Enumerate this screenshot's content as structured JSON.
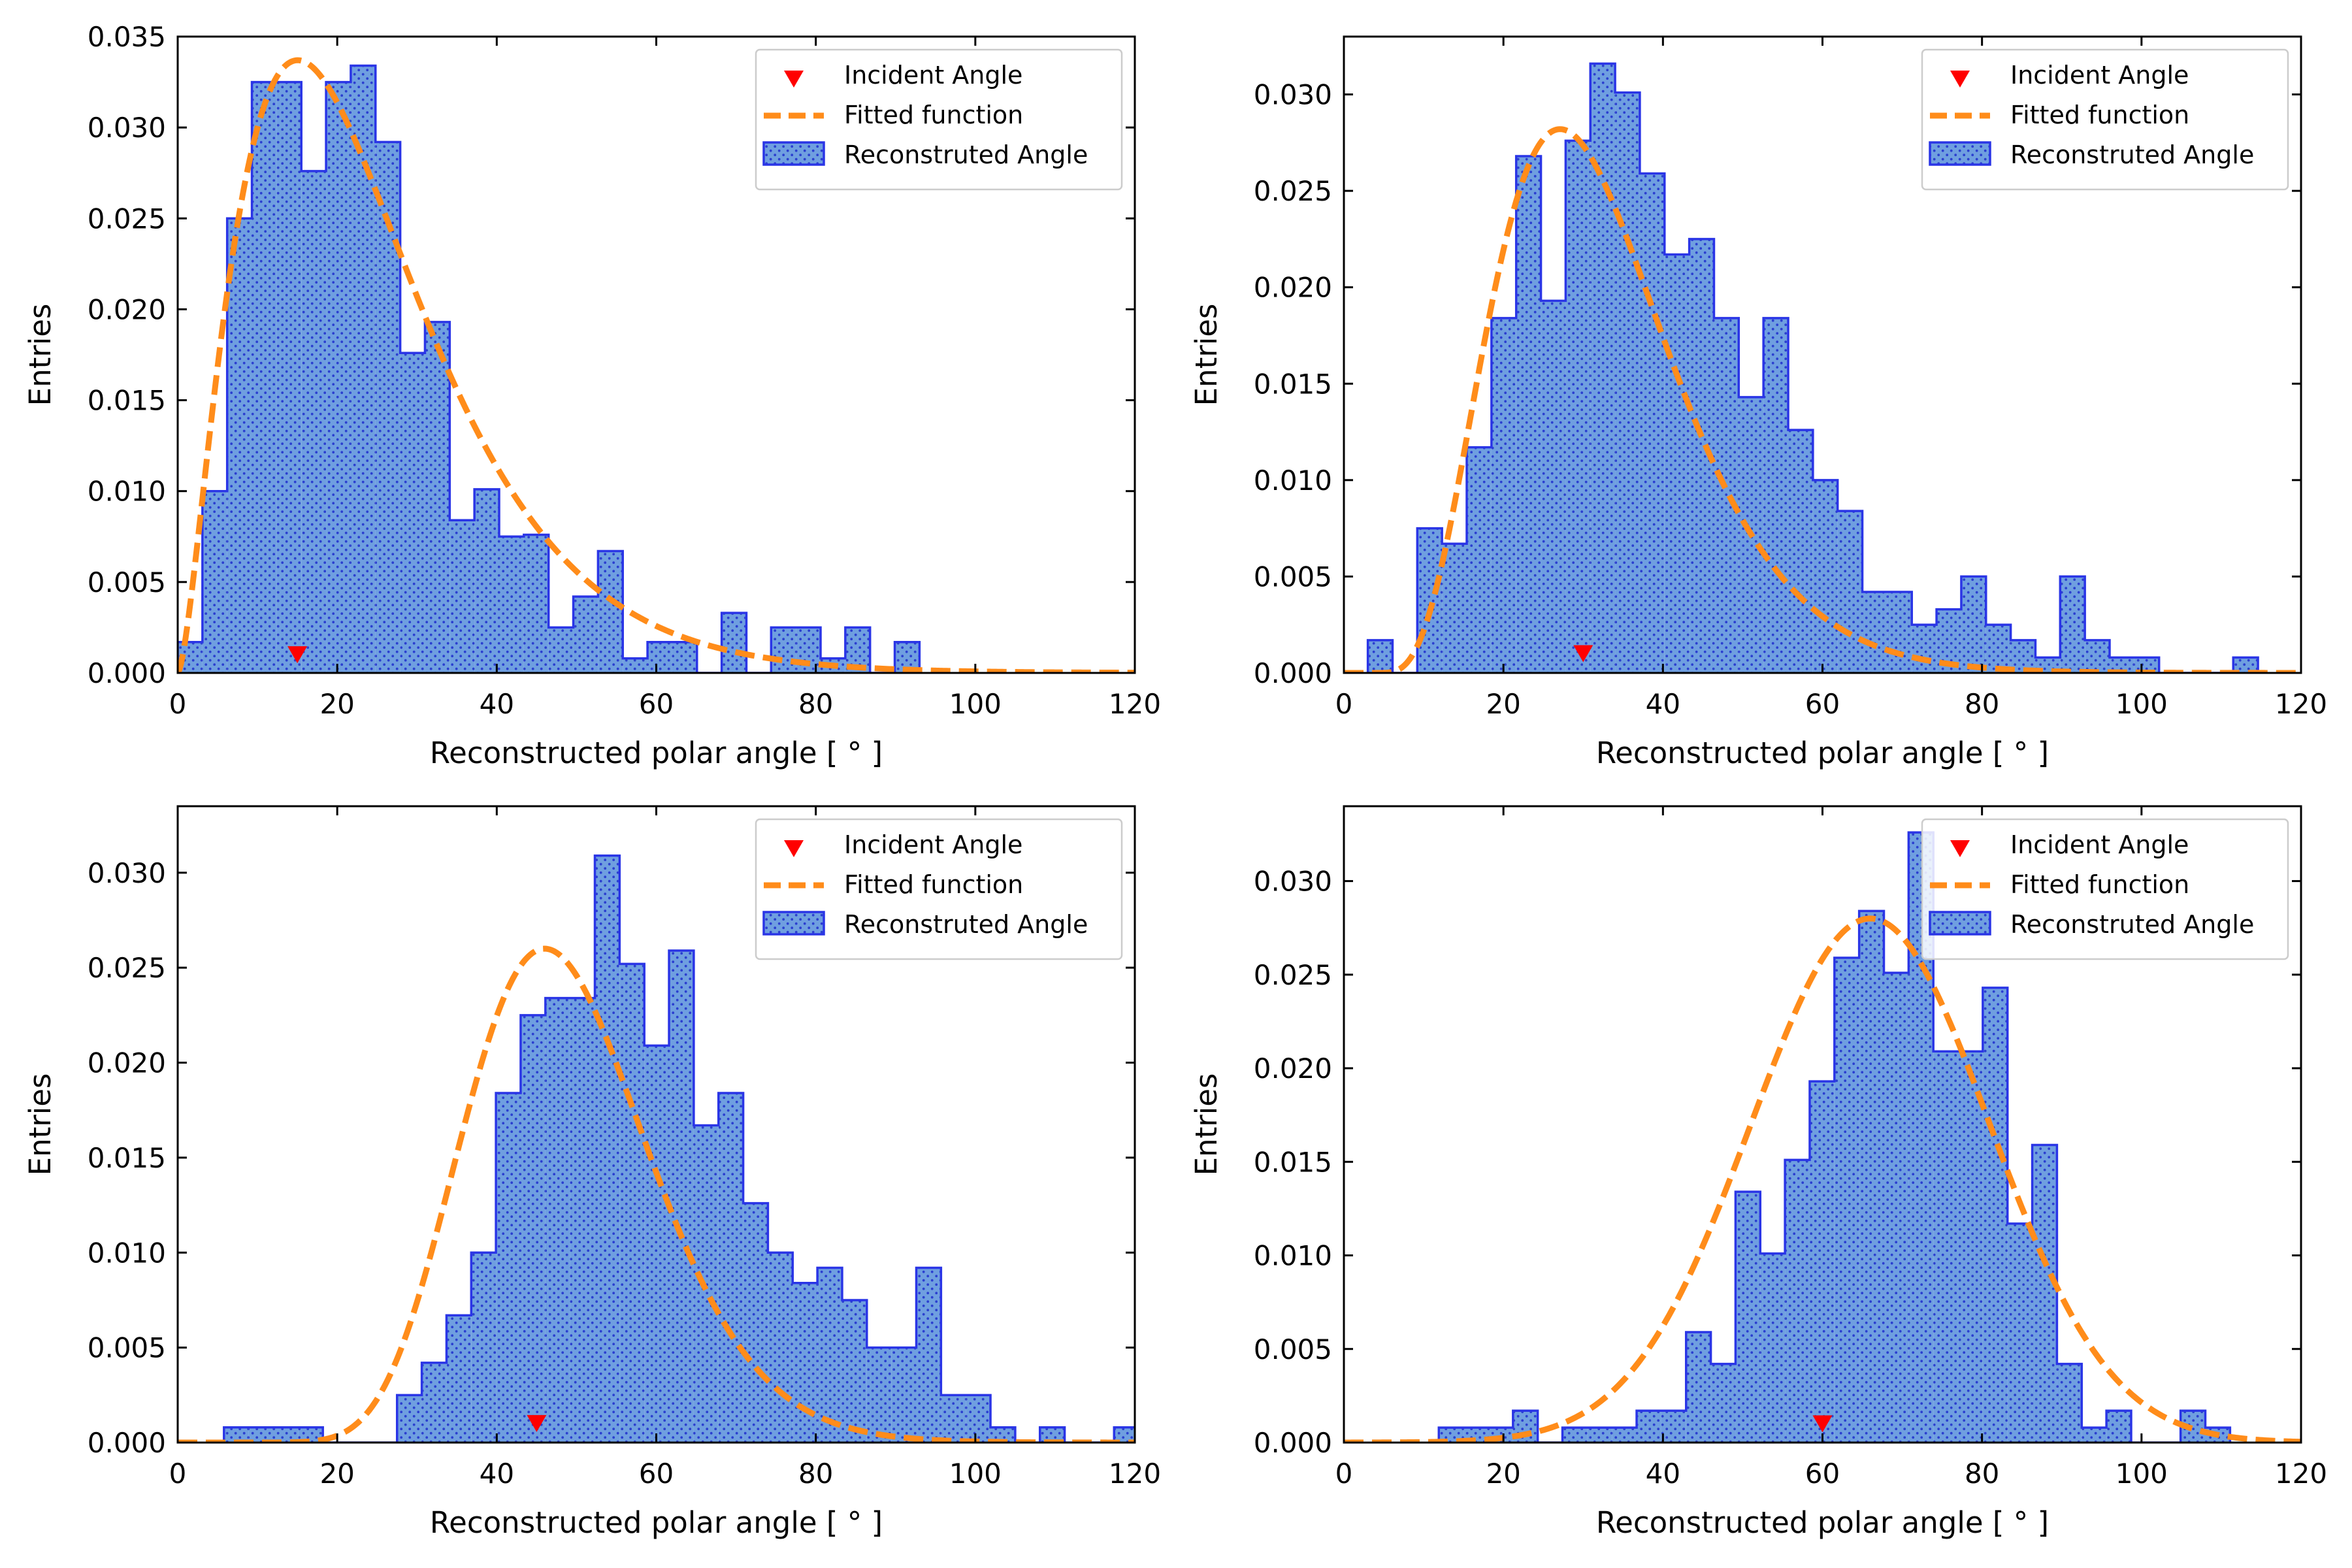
{
  "colors": {
    "fill": "#6f9fe0",
    "edge": "#2a35e6",
    "dots": "#2b3fd0",
    "fit": "#ff8c1a",
    "marker": "#ff0000",
    "axis": "#000000"
  },
  "legend": {
    "incident": "Incident Angle",
    "fitted": "Fitted function",
    "reco": "Reconstruted Angle"
  },
  "chart_data": [
    {
      "type": "histogram",
      "position": "top-left",
      "xlabel": "Reconstructed polar angle [$^\\circ$]",
      "xlabel_display": "Reconstructed polar angle [ ° ]",
      "ylabel": "Entries",
      "xlim": [
        0,
        120
      ],
      "ylim": [
        0,
        0.035
      ],
      "xticks": [
        0,
        20,
        40,
        60,
        80,
        100,
        120
      ],
      "yticks": [
        0.0,
        0.005,
        0.01,
        0.015,
        0.02,
        0.025,
        0.03,
        0.035
      ],
      "ytick_labels": [
        "0.000",
        "0.005",
        "0.010",
        "0.015",
        "0.020",
        "0.025",
        "0.030",
        "0.035"
      ],
      "legend_loc": "upper right",
      "bin_edges_start": 0,
      "bin_width": 3.1,
      "bin_values": [
        0.0017,
        0.01,
        0.025,
        0.0325,
        0.0325,
        0.0276,
        0.0325,
        0.0334,
        0.0292,
        0.0176,
        0.0193,
        0.0084,
        0.0101,
        0.0075,
        0.0076,
        0.0025,
        0.0042,
        0.0067,
        0.0008,
        0.0017,
        0.0017,
        0.0,
        0.0033,
        0.0,
        0.0025,
        0.0025,
        0.0008,
        0.0025,
        0.0,
        0.0017
      ],
      "fit": {
        "shape": "gamma",
        "k": 2.6,
        "theta": 9.4,
        "shift": 0.0,
        "peak": 0.0337
      },
      "incident_angle": 15,
      "incident_y": 0.001
    },
    {
      "type": "histogram",
      "position": "top-right",
      "xlabel": "Reconstructed polar angle [$^\\circ$]",
      "xlabel_display": "Reconstructed polar angle [ ° ]",
      "ylabel": "Entries",
      "xlim": [
        0,
        120
      ],
      "ylim": [
        0,
        0.033
      ],
      "xticks": [
        0,
        20,
        40,
        60,
        80,
        100,
        120
      ],
      "yticks": [
        0.0,
        0.005,
        0.01,
        0.015,
        0.02,
        0.025,
        0.03
      ],
      "ytick_labels": [
        "0.000",
        "0.005",
        "0.010",
        "0.015",
        "0.020",
        "0.025",
        "0.030"
      ],
      "legend_loc": "upper right",
      "bin_edges_start": 3.0,
      "bin_width": 3.1,
      "bin_values": [
        0.0017,
        0.0,
        0.0075,
        0.0067,
        0.0117,
        0.0184,
        0.0268,
        0.0193,
        0.0276,
        0.0316,
        0.0301,
        0.0259,
        0.0217,
        0.0225,
        0.0184,
        0.0143,
        0.0184,
        0.0126,
        0.01,
        0.0084,
        0.0042,
        0.0042,
        0.0025,
        0.0033,
        0.005,
        0.0025,
        0.0017,
        0.0008,
        0.005,
        0.0017,
        0.0008,
        0.0008,
        0.0,
        0.0,
        0.0,
        0.0008
      ],
      "fit": {
        "shape": "gamma",
        "k": 5.2,
        "theta": 5.5,
        "shift": 4.0,
        "peak": 0.0282
      },
      "incident_angle": 30,
      "incident_y": 0.001
    },
    {
      "type": "histogram",
      "position": "bottom-left",
      "xlabel": "Reconstructed polar angle [$^\\circ$]",
      "xlabel_display": "Reconstructed polar angle [ ° ]",
      "ylabel": "Entries",
      "xlim": [
        0,
        120
      ],
      "ylim": [
        0,
        0.0335
      ],
      "xticks": [
        0,
        20,
        40,
        60,
        80,
        100,
        120
      ],
      "yticks": [
        0.0,
        0.005,
        0.01,
        0.015,
        0.02,
        0.025,
        0.03
      ],
      "ytick_labels": [
        "0.000",
        "0.005",
        "0.010",
        "0.015",
        "0.020",
        "0.025",
        "0.030"
      ],
      "legend_loc": "upper right",
      "bin_edges_start": 5.8,
      "bin_width": 3.1,
      "bin_values": [
        0.0008,
        0.0008,
        0.0008,
        0.0008,
        0.0,
        0.0,
        0.0,
        0.0025,
        0.0042,
        0.0067,
        0.01,
        0.0184,
        0.0225,
        0.0234,
        0.0234,
        0.0309,
        0.0252,
        0.0209,
        0.0259,
        0.0167,
        0.0184,
        0.0126,
        0.01,
        0.0084,
        0.0092,
        0.0075,
        0.005,
        0.005,
        0.0092,
        0.0025,
        0.0025,
        0.0008,
        0.0,
        0.0008,
        0.0,
        0.0,
        0.0008
      ],
      "fit": {
        "shape": "gamma",
        "k": 16,
        "theta": 3.0,
        "shift": 1.0,
        "peak": 0.026
      },
      "incident_angle": 45,
      "incident_y": 0.001
    },
    {
      "type": "histogram",
      "position": "bottom-right",
      "xlabel": "Reconstructed polar angle [$^\\circ$]",
      "xlabel_display": "Reconstructed polar angle [ ° ]",
      "ylabel": "Entries",
      "xlim": [
        0,
        120
      ],
      "ylim": [
        0,
        0.034
      ],
      "xticks": [
        0,
        20,
        40,
        60,
        80,
        100,
        120
      ],
      "yticks": [
        0.0,
        0.005,
        0.01,
        0.015,
        0.02,
        0.025,
        0.03
      ],
      "ytick_labels": [
        "0.000",
        "0.005",
        "0.010",
        "0.015",
        "0.020",
        "0.025",
        "0.030"
      ],
      "legend_loc": "upper right",
      "bin_edges_start": 11.9,
      "bin_width": 3.1,
      "bin_values": [
        0.0008,
        0.0008,
        0.0008,
        0.0017,
        0.0,
        0.0008,
        0.0008,
        0.0008,
        0.0017,
        0.0017,
        0.0059,
        0.0042,
        0.0134,
        0.0101,
        0.0151,
        0.0193,
        0.0259,
        0.0284,
        0.0251,
        0.0326,
        0.0209,
        0.0209,
        0.0243,
        0.0117,
        0.0159,
        0.0042,
        0.0008,
        0.0017,
        0.0,
        0.0,
        0.0017,
        0.0008
      ],
      "fit": {
        "shape": "gauss",
        "mu": 66,
        "sigma": 15,
        "peak": 0.028
      },
      "incident_angle": 60,
      "incident_y": 0.001
    }
  ]
}
